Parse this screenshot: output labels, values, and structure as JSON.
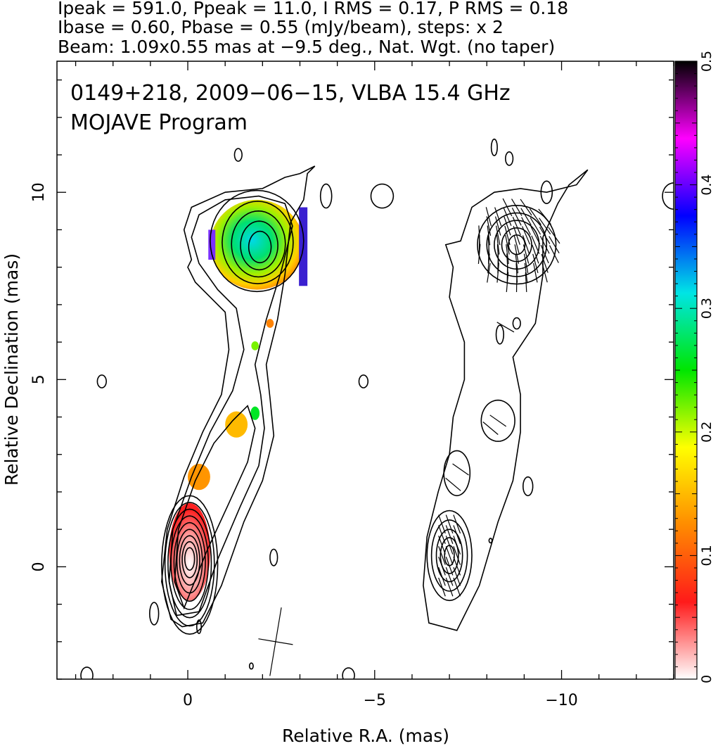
{
  "header": {
    "line1": "Ipeak = 591.0, Ppeak = 11.0, I RMS = 0.17, P RMS = 0.18",
    "line2": "Ibase = 0.60, Pbase = 0.55 (mJy/beam), steps: x 2",
    "line3": "Beam: 1.09x0.55 mas at −9.5 deg., Nat. Wgt. (no taper)"
  },
  "plot": {
    "title_line1": "0149+218, 2009−06−15, VLBA 15.4 GHz",
    "title_line2": "MOJAVE Program"
  },
  "chart_data": {
    "type": "contour-map",
    "xlabel": "Relative R.A. (mas)",
    "ylabel": "Relative Declination (mas)",
    "xlim": [
      3.5,
      -13.0
    ],
    "ylim": [
      -3.0,
      13.5
    ],
    "x_ticks": [
      {
        "value": 0,
        "label": "0"
      },
      {
        "value": -5,
        "label": "−5"
      },
      {
        "value": -10,
        "label": "−10"
      }
    ],
    "y_ticks": [
      {
        "value": 0,
        "label": "0"
      },
      {
        "value": 5,
        "label": "5"
      },
      {
        "value": 10,
        "label": "10"
      }
    ],
    "colorbar": {
      "range": [
        0,
        0.5
      ],
      "ticks": [
        {
          "value": 0,
          "label": "0"
        },
        {
          "value": 0.1,
          "label": "0.1"
        },
        {
          "value": 0.2,
          "label": "0.2"
        },
        {
          "value": 0.3,
          "label": "0.3"
        },
        {
          "value": 0.4,
          "label": "0.4"
        },
        {
          "value": 0.5,
          "label": "0.5"
        }
      ],
      "colors": [
        "#ffffff",
        "#ff1a1a",
        "#ff8c00",
        "#ffff00",
        "#00e600",
        "#00e5e5",
        "#0000ff",
        "#ff00ff",
        "#000000"
      ]
    },
    "colored_regions": [
      {
        "name": "core",
        "x": -0.05,
        "y": 0.4,
        "rx": 0.55,
        "ry": 1.3,
        "value": 0.05
      },
      {
        "name": "knot-a",
        "x": -0.3,
        "y": 2.4,
        "rx": 0.3,
        "ry": 0.35,
        "value": 0.13
      },
      {
        "name": "knot-b",
        "x": -1.3,
        "y": 3.8,
        "rx": 0.3,
        "ry": 0.35,
        "value": 0.15
      },
      {
        "name": "knot-c",
        "x": -1.8,
        "y": 4.1,
        "rx": 0.12,
        "ry": 0.18,
        "value": 0.26
      },
      {
        "name": "knot-d",
        "x": -1.8,
        "y": 5.9,
        "rx": 0.1,
        "ry": 0.12,
        "value": 0.22
      },
      {
        "name": "knot-e",
        "x": -2.2,
        "y": 6.5,
        "rx": 0.1,
        "ry": 0.12,
        "value": 0.12
      },
      {
        "name": "jet-head",
        "x": -1.85,
        "y": 8.6,
        "rx": 1.25,
        "ry": 1.2,
        "value": 0.3
      }
    ],
    "beam": {
      "x": -2.35,
      "y": -2.0,
      "major_mas": 1.09,
      "minor_mas": 0.55,
      "pa_deg": -9.5
    },
    "total_intensity_panel": {
      "ra_offset_mas": -7.0,
      "note": "right panel repeats I contours with EVPA ticks"
    }
  }
}
